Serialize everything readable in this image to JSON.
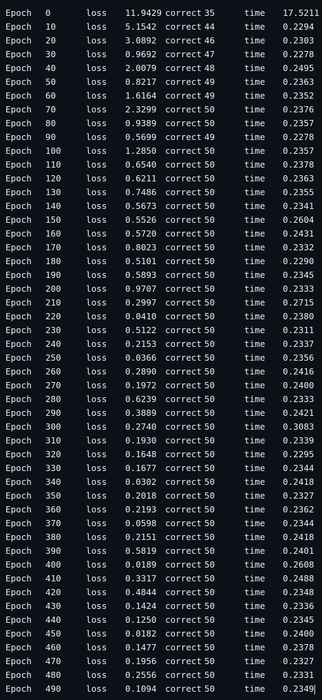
{
  "log": {
    "labels": {
      "epoch": "Epoch",
      "loss": "loss",
      "correct": "correct",
      "time": "time"
    },
    "rows": [
      {
        "epoch": "0",
        "loss": "11.9429",
        "correct": "35",
        "time": "17.5211"
      },
      {
        "epoch": "10",
        "loss": "5.1542",
        "correct": "44",
        "time": "0.2294"
      },
      {
        "epoch": "20",
        "loss": "3.0892",
        "correct": "46",
        "time": "0.2303"
      },
      {
        "epoch": "30",
        "loss": "0.9692",
        "correct": "47",
        "time": "0.2278"
      },
      {
        "epoch": "40",
        "loss": "2.0079",
        "correct": "48",
        "time": "0.2495"
      },
      {
        "epoch": "50",
        "loss": "0.8217",
        "correct": "49",
        "time": "0.2363"
      },
      {
        "epoch": "60",
        "loss": "1.6164",
        "correct": "49",
        "time": "0.2352"
      },
      {
        "epoch": "70",
        "loss": "2.3299",
        "correct": "50",
        "time": "0.2376"
      },
      {
        "epoch": "80",
        "loss": "0.9389",
        "correct": "50",
        "time": "0.2357"
      },
      {
        "epoch": "90",
        "loss": "0.5699",
        "correct": "49",
        "time": "0.2278"
      },
      {
        "epoch": "100",
        "loss": "1.2850",
        "correct": "50",
        "time": "0.2357"
      },
      {
        "epoch": "110",
        "loss": "0.6540",
        "correct": "50",
        "time": "0.2378"
      },
      {
        "epoch": "120",
        "loss": "0.6211",
        "correct": "50",
        "time": "0.2363"
      },
      {
        "epoch": "130",
        "loss": "0.7486",
        "correct": "50",
        "time": "0.2355"
      },
      {
        "epoch": "140",
        "loss": "0.5673",
        "correct": "50",
        "time": "0.2341"
      },
      {
        "epoch": "150",
        "loss": "0.5526",
        "correct": "50",
        "time": "0.2604"
      },
      {
        "epoch": "160",
        "loss": "0.5720",
        "correct": "50",
        "time": "0.2431"
      },
      {
        "epoch": "170",
        "loss": "0.8023",
        "correct": "50",
        "time": "0.2332"
      },
      {
        "epoch": "180",
        "loss": "0.5101",
        "correct": "50",
        "time": "0.2290"
      },
      {
        "epoch": "190",
        "loss": "0.5893",
        "correct": "50",
        "time": "0.2345"
      },
      {
        "epoch": "200",
        "loss": "0.9707",
        "correct": "50",
        "time": "0.2333"
      },
      {
        "epoch": "210",
        "loss": "0.2997",
        "correct": "50",
        "time": "0.2715"
      },
      {
        "epoch": "220",
        "loss": "0.0410",
        "correct": "50",
        "time": "0.2380"
      },
      {
        "epoch": "230",
        "loss": "0.5122",
        "correct": "50",
        "time": "0.2311"
      },
      {
        "epoch": "240",
        "loss": "0.2153",
        "correct": "50",
        "time": "0.2337"
      },
      {
        "epoch": "250",
        "loss": "0.0366",
        "correct": "50",
        "time": "0.2356"
      },
      {
        "epoch": "260",
        "loss": "0.2890",
        "correct": "50",
        "time": "0.2416"
      },
      {
        "epoch": "270",
        "loss": "0.1972",
        "correct": "50",
        "time": "0.2400"
      },
      {
        "epoch": "280",
        "loss": "0.6239",
        "correct": "50",
        "time": "0.2333"
      },
      {
        "epoch": "290",
        "loss": "0.3889",
        "correct": "50",
        "time": "0.2421"
      },
      {
        "epoch": "300",
        "loss": "0.2740",
        "correct": "50",
        "time": "0.3083"
      },
      {
        "epoch": "310",
        "loss": "0.1930",
        "correct": "50",
        "time": "0.2339"
      },
      {
        "epoch": "320",
        "loss": "0.1648",
        "correct": "50",
        "time": "0.2295"
      },
      {
        "epoch": "330",
        "loss": "0.1677",
        "correct": "50",
        "time": "0.2344"
      },
      {
        "epoch": "340",
        "loss": "0.0302",
        "correct": "50",
        "time": "0.2418"
      },
      {
        "epoch": "350",
        "loss": "0.2018",
        "correct": "50",
        "time": "0.2327"
      },
      {
        "epoch": "360",
        "loss": "0.2193",
        "correct": "50",
        "time": "0.2362"
      },
      {
        "epoch": "370",
        "loss": "0.0598",
        "correct": "50",
        "time": "0.2344"
      },
      {
        "epoch": "380",
        "loss": "0.2151",
        "correct": "50",
        "time": "0.2418"
      },
      {
        "epoch": "390",
        "loss": "0.5819",
        "correct": "50",
        "time": "0.2401"
      },
      {
        "epoch": "400",
        "loss": "0.0189",
        "correct": "50",
        "time": "0.2608"
      },
      {
        "epoch": "410",
        "loss": "0.3317",
        "correct": "50",
        "time": "0.2488"
      },
      {
        "epoch": "420",
        "loss": "0.4844",
        "correct": "50",
        "time": "0.2348"
      },
      {
        "epoch": "430",
        "loss": "0.1424",
        "correct": "50",
        "time": "0.2336"
      },
      {
        "epoch": "440",
        "loss": "0.1250",
        "correct": "50",
        "time": "0.2345"
      },
      {
        "epoch": "450",
        "loss": "0.0182",
        "correct": "50",
        "time": "0.2400"
      },
      {
        "epoch": "460",
        "loss": "0.1477",
        "correct": "50",
        "time": "0.2378"
      },
      {
        "epoch": "470",
        "loss": "0.1956",
        "correct": "50",
        "time": "0.2327"
      },
      {
        "epoch": "480",
        "loss": "0.2556",
        "correct": "50",
        "time": "0.2331"
      },
      {
        "epoch": "490",
        "loss": "0.1094",
        "correct": "50",
        "time": "0.2349"
      }
    ]
  }
}
